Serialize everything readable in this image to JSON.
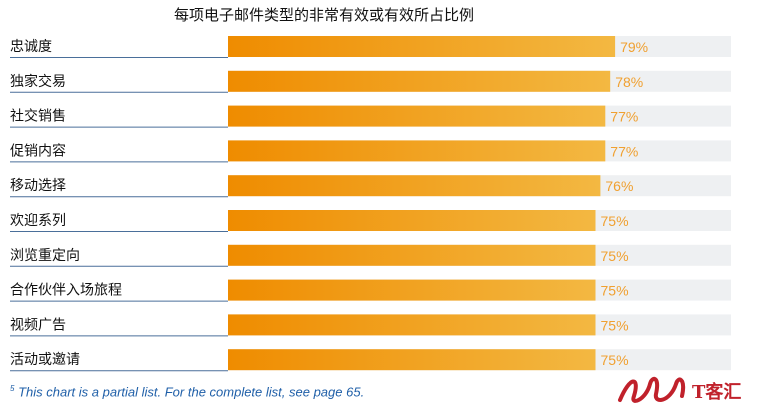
{
  "chart_data": {
    "type": "bar",
    "orientation": "horizontal",
    "title": "每项电子邮件类型的非常有效或有效所占比例",
    "categories": [
      "忠诚度",
      "独家交易",
      "社交销售",
      "促销内容",
      "移动选择",
      "欢迎系列",
      "浏览重定向",
      "合作伙伴入场旅程",
      "视频广告",
      "活动或邀请"
    ],
    "values": [
      79,
      78,
      77,
      77,
      76,
      75,
      75,
      75,
      75,
      75
    ],
    "value_labels": [
      "79%",
      "78%",
      "77%",
      "77%",
      "76%",
      "75%",
      "75%",
      "75%",
      "75%",
      "75%"
    ],
    "xlim": [
      0,
      100
    ],
    "unit": "%",
    "grid": false,
    "legend": "none",
    "colors": {
      "bar_start": "#ef8c00",
      "bar_end": "#f3b842",
      "track": "#eef0f2",
      "value_label": "#f0a030",
      "underline": "#4a6f9a"
    }
  },
  "footnote": {
    "marker": "5",
    "text": "This chart is a partial list. For the complete list, see page 65."
  },
  "watermark": {
    "text": "T客汇",
    "color": "#c0212b"
  }
}
